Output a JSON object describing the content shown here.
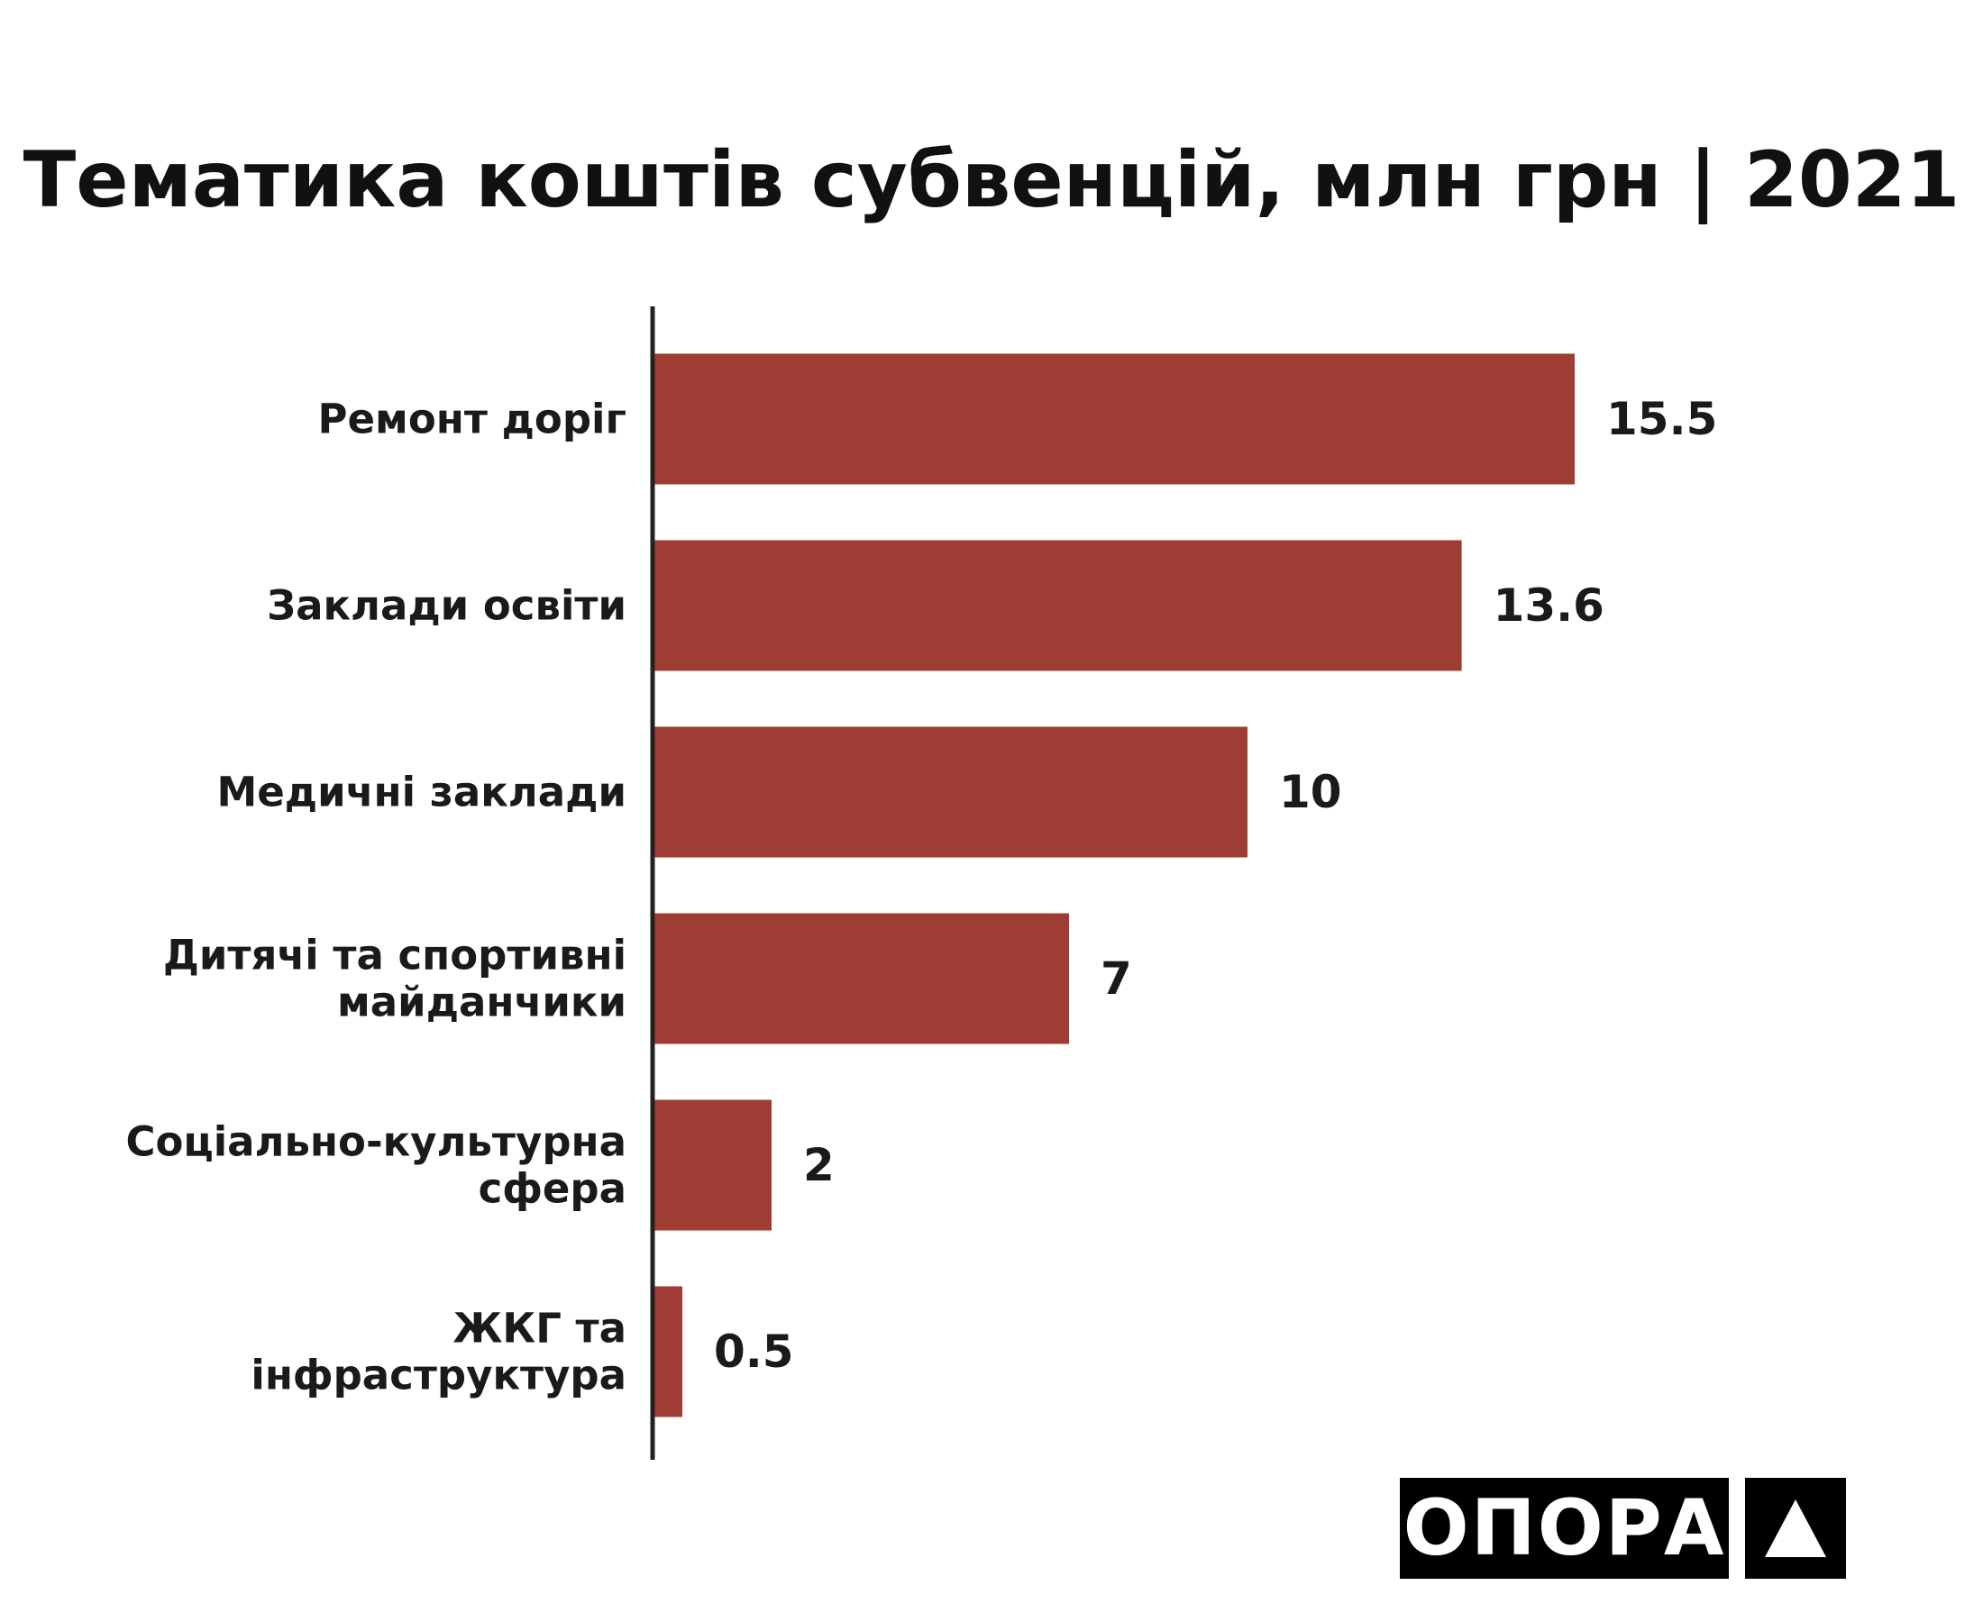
{
  "chart_data": {
    "type": "bar",
    "orientation": "horizontal",
    "title": "Тематика коштів субвенцій, млн грн | 2021",
    "categories": [
      [
        "Ремонт доріг"
      ],
      [
        "Заклади освіти"
      ],
      [
        "Медичні заклади"
      ],
      [
        "Дитячі та спортивні",
        "майданчики"
      ],
      [
        "Соціально-культурна",
        "сфера"
      ],
      [
        "ЖКГ та",
        "інфраструктура"
      ]
    ],
    "values": [
      15.5,
      13.6,
      10,
      7,
      2,
      0.5
    ],
    "value_labels": [
      "15.5",
      "13.6",
      "10",
      "7",
      "2",
      "0.5"
    ],
    "bar_color": "#9e3d34",
    "axis_color": "#222222",
    "grid": false,
    "legend": false
  },
  "logo": {
    "text": "ОПОРА",
    "icon": "triangle-icon"
  }
}
